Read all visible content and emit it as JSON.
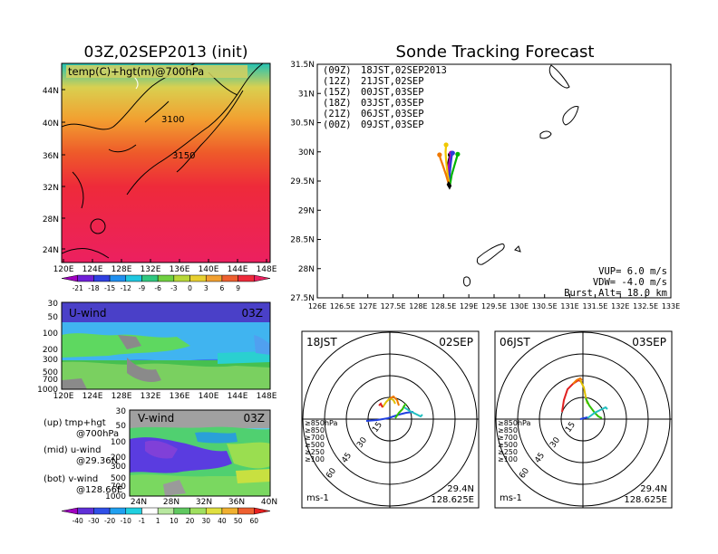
{
  "left_title": "03Z,02SEP2013 (init)",
  "right_title": "Sonde Tracking Forecast",
  "top_panel": {
    "label": "temp(C)+hgt(m)@700hPa",
    "contour_labels": [
      "3100",
      "3150"
    ],
    "lat_ticks": [
      "44N",
      "40N",
      "36N",
      "32N",
      "28N",
      "24N"
    ],
    "lon_ticks": [
      "120E",
      "124E",
      "128E",
      "132E",
      "136E",
      "140E",
      "144E",
      "148E"
    ],
    "colorbar_ticks": [
      "-21",
      "-18",
      "-15",
      "-12",
      "-9",
      "-6",
      "-3",
      "0",
      "3",
      "6",
      "9"
    ]
  },
  "u_panel": {
    "label": "U-wind",
    "time": "03Z",
    "p_ticks": [
      "30",
      "50",
      "100",
      "200",
      "300",
      "500",
      "700",
      "1000"
    ],
    "lon_ticks": [
      "120E",
      "124E",
      "128E",
      "132E",
      "136E",
      "140E",
      "144E",
      "148E"
    ]
  },
  "v_panel": {
    "label": "V-wind",
    "time": "03Z",
    "p_ticks": [
      "30",
      "50",
      "100",
      "200",
      "300",
      "500",
      "700",
      "1000"
    ],
    "lat_ticks": [
      "24N",
      "28N",
      "32N",
      "36N",
      "40N"
    ],
    "colorbar_ticks": [
      "-40",
      "-30",
      "-20",
      "-10",
      "-1",
      "1",
      "10",
      "20",
      "30",
      "40",
      "50",
      "60"
    ]
  },
  "left_notes": [
    {
      "line1": "(up) tmp+hgt",
      "line2": "@700hPa"
    },
    {
      "line1": "(mid) u-wind",
      "line2": "@29.36N"
    },
    {
      "line1": "(bot) v-wind",
      "line2": "@128.66E"
    }
  ],
  "track_panel": {
    "lat_ticks": [
      "31.5N",
      "31N",
      "30.5N",
      "30N",
      "29.5N",
      "29N",
      "28.5N",
      "28N",
      "27.5N"
    ],
    "lon_ticks": [
      "126E",
      "126.5E",
      "127E",
      "127.5E",
      "128E",
      "128.5E",
      "129E",
      "129.5E",
      "130E",
      "130.5E",
      "131E",
      "131.5E",
      "132E",
      "132.5E",
      "133E"
    ],
    "legend": [
      {
        "code": "(09Z)",
        "text": "18JST,02SEP2013",
        "color": "#000000"
      },
      {
        "code": "(12Z)",
        "text": "21JST,02SEP",
        "color": "#b000b0"
      },
      {
        "code": "(15Z)",
        "text": "00JST,03SEP",
        "color": "#2a3cd8"
      },
      {
        "code": "(18Z)",
        "text": "03JST,03SEP",
        "color": "#00b400"
      },
      {
        "code": "(21Z)",
        "text": "06JST,03SEP",
        "color": "#f0c800"
      },
      {
        "code": "(00Z)",
        "text": "09JST,03SEP",
        "color": "#f07800"
      }
    ],
    "params": [
      "VUP=  6.0 m/s",
      "VDW= -4.0 m/s",
      "Burst Alt= 18.0 km"
    ]
  },
  "hodographs": [
    {
      "time": "18JST",
      "date": "02SEP",
      "lat": "29.4N",
      "lon": "128.625E",
      "unit": "ms-1",
      "rings": [
        "15",
        "30",
        "45",
        "60"
      ]
    },
    {
      "time": "06JST",
      "date": "03SEP",
      "lat": "29.4N",
      "lon": "128.625E",
      "unit": "ms-1",
      "rings": [
        "15",
        "30",
        "45",
        "60"
      ]
    }
  ],
  "hodo_legend": [
    {
      "text": "≥850hPa",
      "color": "#e02020"
    },
    {
      "text": "≥850",
      "color": "#f07800"
    },
    {
      "text": "≥700",
      "color": "#e0c000"
    },
    {
      "text": "≥500",
      "color": "#30c000"
    },
    {
      "text": "≥250",
      "color": "#20c0c0"
    },
    {
      "text": "≥100",
      "color": "#2040e0"
    }
  ],
  "chart_data": {
    "type": "line",
    "title": "Sonde Tracking Forecast",
    "xlim": [
      126,
      133
    ],
    "ylim": [
      27.5,
      31.5
    ],
    "series": [
      {
        "name": "(09Z) 18JST,02SEP2013",
        "color": "#000000",
        "points": [
          [
            128.62,
            29.4
          ],
          [
            128.6,
            29.55
          ],
          [
            128.58,
            29.72
          ],
          [
            128.6,
            29.85
          ],
          [
            128.63,
            29.95
          ]
        ]
      },
      {
        "name": "(12Z) 21JST,02SEP",
        "color": "#b000b0",
        "points": [
          [
            128.62,
            29.4
          ],
          [
            128.6,
            29.58
          ],
          [
            128.6,
            29.75
          ],
          [
            128.63,
            29.9
          ],
          [
            128.65,
            29.98
          ]
        ]
      },
      {
        "name": "(15Z) 00JST,03SEP",
        "color": "#2a3cd8",
        "points": [
          [
            128.62,
            29.4
          ],
          [
            128.62,
            29.6
          ],
          [
            128.64,
            29.78
          ],
          [
            128.66,
            29.92
          ],
          [
            128.68,
            29.98
          ]
        ]
      },
      {
        "name": "(18Z) 03JST,03SEP",
        "color": "#00b400",
        "points": [
          [
            128.62,
            29.4
          ],
          [
            128.66,
            29.6
          ],
          [
            128.72,
            29.78
          ],
          [
            128.76,
            29.9
          ],
          [
            128.78,
            29.96
          ]
        ]
      },
      {
        "name": "(21Z) 06JST,03SEP",
        "color": "#f0c800",
        "points": [
          [
            128.62,
            29.4
          ],
          [
            128.58,
            29.62
          ],
          [
            128.55,
            29.85
          ],
          [
            128.54,
            30.0
          ],
          [
            128.55,
            30.12
          ]
        ]
      },
      {
        "name": "(00Z) 09JST,03SEP",
        "color": "#f07800",
        "points": [
          [
            128.62,
            29.4
          ],
          [
            128.55,
            29.6
          ],
          [
            128.48,
            29.78
          ],
          [
            128.44,
            29.88
          ],
          [
            128.42,
            29.95
          ]
        ]
      }
    ]
  }
}
